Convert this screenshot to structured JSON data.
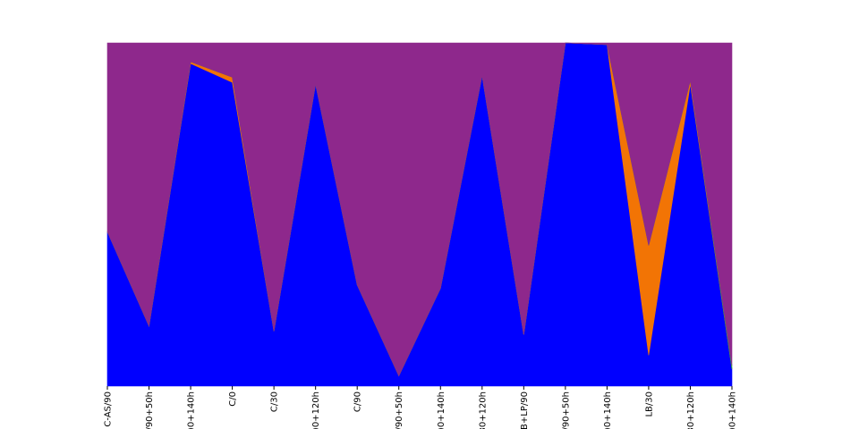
{
  "chart_data": {
    "type": "area",
    "stacked": true,
    "normalized": true,
    "ylim": [
      0,
      1
    ],
    "grid": false,
    "legend": "none",
    "categories": [
      "C-AS/90",
      "/90+50h",
      ")0+140h",
      "C/0",
      "C/30",
      ")0+120h",
      "C/90",
      "/90+50h",
      ")0+140h",
      "30+120h",
      "B+LP/90",
      "/90+50h",
      ")0+140h",
      "LB/30",
      "30+120h",
      ")0+140h"
    ],
    "series": [
      {
        "color": "#0000ff",
        "values": [
          0.45,
          0.175,
          0.94,
          0.885,
          0.16,
          0.88,
          0.295,
          0.03,
          0.285,
          0.905,
          0.15,
          1.0,
          0.995,
          0.09,
          0.88,
          0.05
        ]
      },
      {
        "color": "#f27405",
        "values": [
          0.0,
          0.0,
          0.005,
          0.015,
          0.0,
          0.0,
          0.0,
          0.0,
          0.0,
          0.0,
          0.0,
          0.0,
          0.0,
          0.32,
          0.01,
          0.0
        ]
      },
      {
        "color": "#22aa44",
        "values": [
          0.0,
          0.0,
          0.0,
          0.0,
          0.0,
          0.0,
          0.0,
          0.0,
          0.0,
          0.0,
          0.0,
          0.0,
          0.0,
          0.0,
          0.0,
          0.01
        ]
      },
      {
        "color": "#8e288c",
        "values": [
          0.55,
          0.825,
          0.055,
          0.1,
          0.84,
          0.12,
          0.705,
          0.97,
          0.715,
          0.095,
          0.85,
          0.0,
          0.005,
          0.59,
          0.11,
          0.94
        ]
      }
    ]
  }
}
